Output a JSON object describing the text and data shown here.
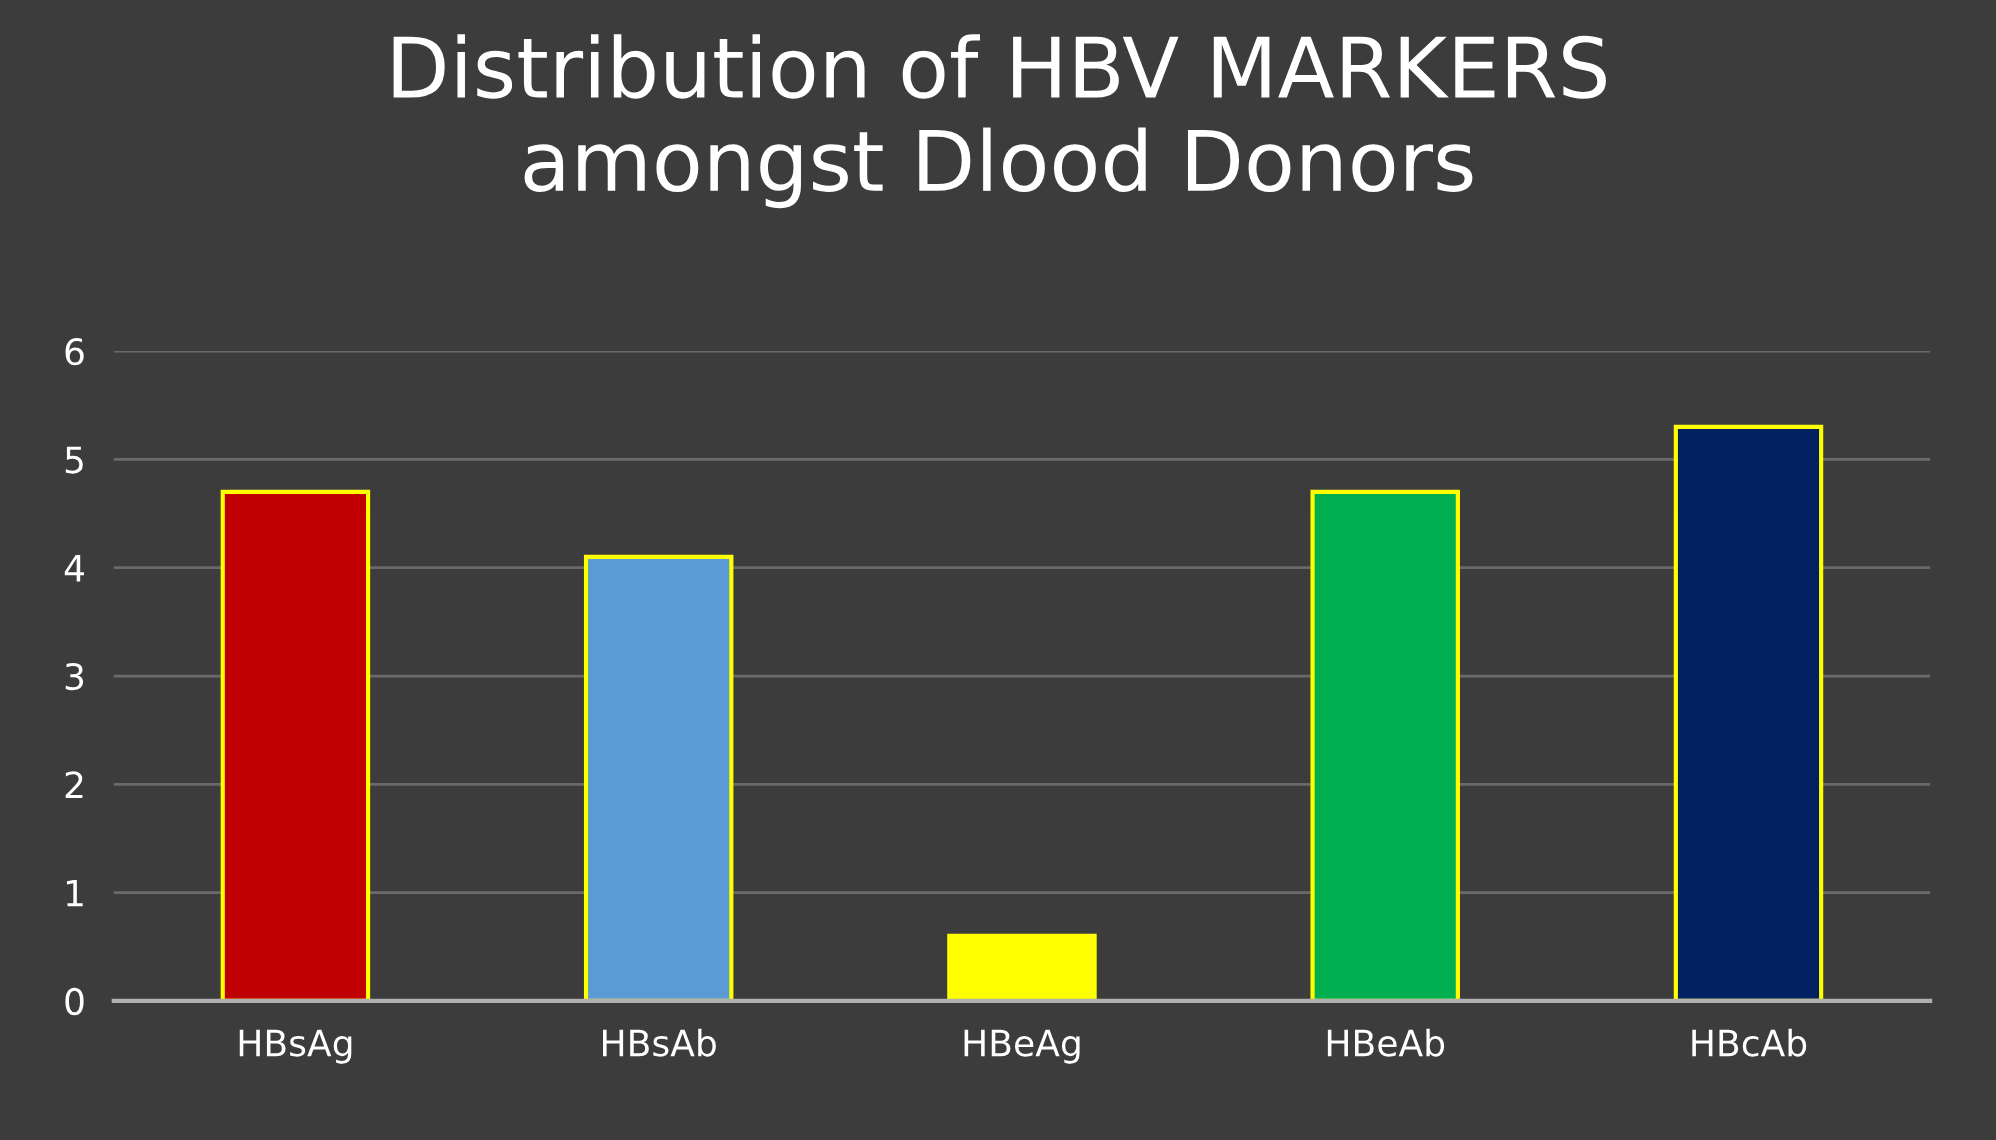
{
  "chart_data": {
    "type": "bar",
    "title": "Distribution of HBV MARKERS\namongst Dlood Donors",
    "categories": [
      "HBsAg",
      "HBsAb",
      "HBeAg",
      "HBeAb",
      "HBcAb"
    ],
    "values": [
      4.7,
      4.1,
      0.6,
      4.7,
      5.3
    ],
    "colors": [
      "#c00000",
      "#5b9bd5",
      "#ffff00",
      "#00b050",
      "#002060"
    ],
    "ylim": [
      0,
      6
    ],
    "yticks": [
      0,
      1,
      2,
      3,
      4,
      5,
      6
    ],
    "grid": "y",
    "legend": false
  }
}
